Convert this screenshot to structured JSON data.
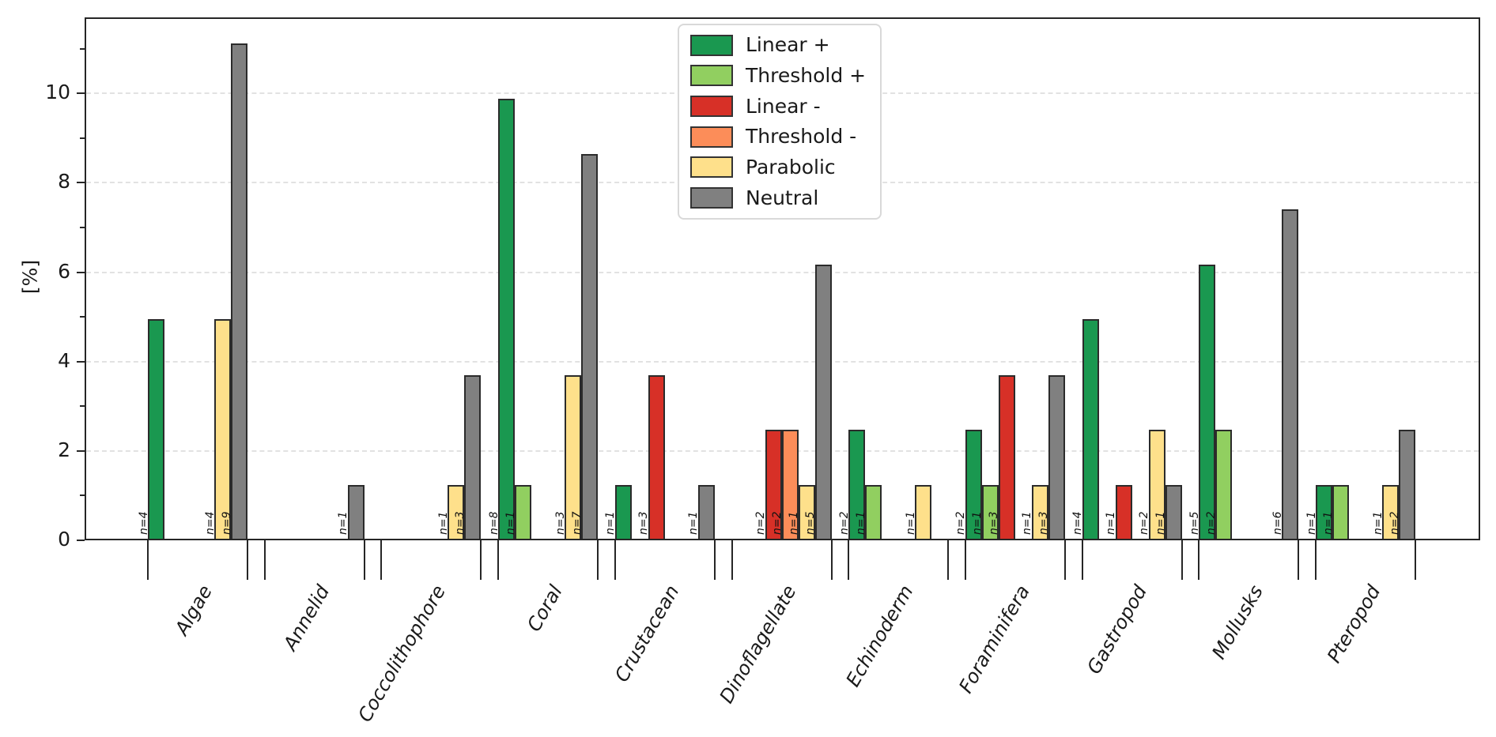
{
  "chart_data": {
    "type": "bar",
    "title": "",
    "xlabel": "",
    "ylabel": "[%]",
    "ylim": [
      0,
      11.7
    ],
    "yticks_major": [
      0,
      2,
      4,
      6,
      8,
      10
    ],
    "yticks_minor": [
      1,
      3,
      5,
      7,
      9,
      11
    ],
    "grid": "horizontal dashed at major ticks",
    "legend_position": "upper center inside plot",
    "bar_label_prefix": "n=",
    "edge_color": "#2b2b2b",
    "categories": [
      "Algae",
      "Annelid",
      "Coccolithophore",
      "Coral",
      "Crustacean",
      "Dinoflagellate",
      "Echinoderm",
      "Foraminifera",
      "Gastropod",
      "Mollusks",
      "Pteropod"
    ],
    "series": [
      {
        "name": "Linear +",
        "color": "#1a9850",
        "counts": [
          4,
          null,
          null,
          8,
          1,
          null,
          2,
          2,
          4,
          5,
          1
        ],
        "values": [
          4.94,
          null,
          null,
          9.88,
          1.23,
          null,
          2.47,
          2.47,
          4.94,
          6.17,
          1.23
        ]
      },
      {
        "name": "Threshold +",
        "color": "#91cf60",
        "counts": [
          null,
          null,
          null,
          1,
          null,
          null,
          1,
          1,
          null,
          2,
          1
        ],
        "values": [
          null,
          null,
          null,
          1.23,
          null,
          null,
          1.23,
          1.23,
          null,
          2.47,
          1.23
        ]
      },
      {
        "name": "Linear -",
        "color": "#d73027",
        "counts": [
          null,
          null,
          null,
          null,
          3,
          2,
          null,
          3,
          1,
          null,
          null
        ],
        "values": [
          null,
          null,
          null,
          null,
          3.7,
          2.47,
          null,
          3.7,
          1.23,
          null,
          null
        ]
      },
      {
        "name": "Threshold -",
        "color": "#fc8d59",
        "counts": [
          null,
          null,
          null,
          null,
          null,
          2,
          null,
          null,
          null,
          null,
          null
        ],
        "values": [
          null,
          null,
          null,
          null,
          null,
          2.47,
          null,
          null,
          null,
          null,
          null
        ]
      },
      {
        "name": "Parabolic",
        "color": "#fee08b",
        "counts": [
          4,
          null,
          1,
          3,
          null,
          1,
          1,
          1,
          2,
          null,
          1
        ],
        "values": [
          4.94,
          null,
          1.23,
          3.7,
          null,
          1.23,
          1.23,
          1.23,
          2.47,
          null,
          1.23
        ]
      },
      {
        "name": "Neutral",
        "color": "#808080",
        "counts": [
          9,
          1,
          3,
          7,
          1,
          5,
          null,
          3,
          1,
          6,
          2
        ],
        "values": [
          11.11,
          1.23,
          3.7,
          8.64,
          1.23,
          6.17,
          null,
          3.7,
          1.23,
          7.41,
          2.47
        ]
      }
    ]
  }
}
